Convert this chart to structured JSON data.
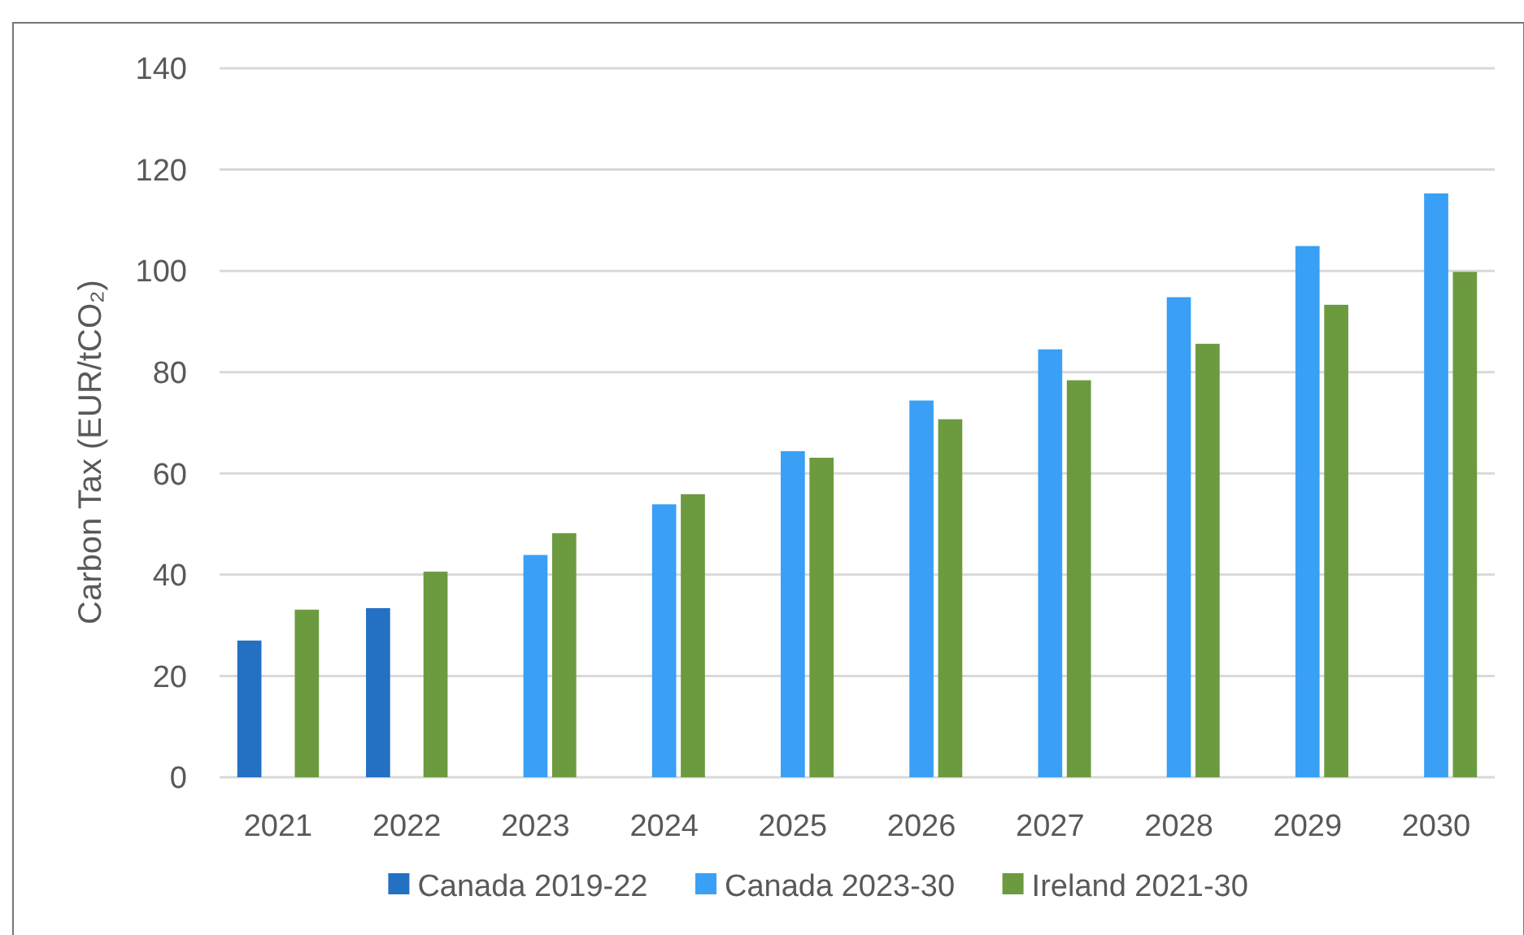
{
  "chart_data": {
    "type": "bar",
    "ylabel": "Carbon Tax (EUR/tCO₂)",
    "categories": [
      "2021",
      "2022",
      "2023",
      "2024",
      "2025",
      "2026",
      "2027",
      "2028",
      "2029",
      "2030"
    ],
    "series": [
      {
        "name": "Canada 2019-22",
        "color": "#2470c2",
        "values": [
          27,
          33.4,
          null,
          null,
          null,
          null,
          null,
          null,
          null,
          null
        ]
      },
      {
        "name": "Canada 2023-30",
        "color": "#39a0f5",
        "values": [
          null,
          null,
          43.9,
          53.9,
          64.4,
          74.4,
          84.5,
          94.8,
          104.9,
          115.3
        ]
      },
      {
        "name": "Ireland 2021-30",
        "color": "#6c9a3f",
        "values": [
          33.1,
          40.6,
          48.2,
          55.9,
          63.1,
          70.7,
          78.4,
          85.6,
          93.3,
          99.8
        ]
      }
    ],
    "ylim": [
      0,
      140
    ],
    "yticks": [
      0,
      20,
      40,
      60,
      80,
      100,
      120,
      140
    ],
    "grid": "y",
    "legend": "bottom"
  }
}
